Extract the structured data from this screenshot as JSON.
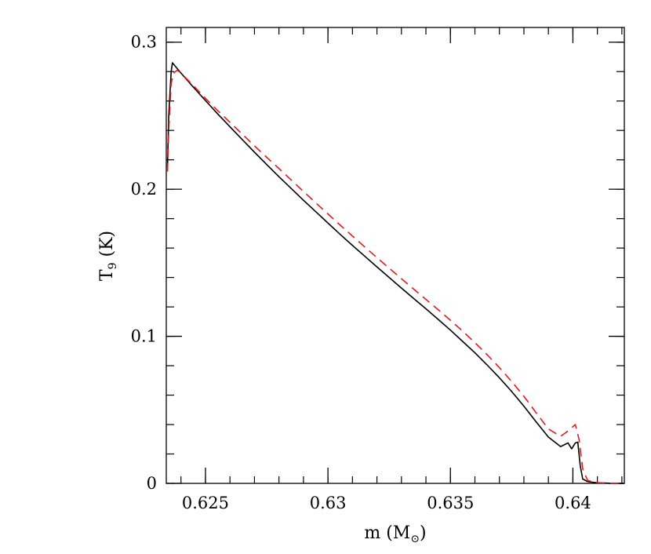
{
  "chart_data": {
    "type": "line",
    "xlabel": "m (M",
    "xlabel_unit_symbol": "⊙",
    "xlabel_close": ")",
    "ylabel": "T",
    "ylabel_sub": "9",
    "ylabel_unit": "(K)",
    "xlim": [
      0.6234,
      0.6421
    ],
    "ylim": [
      0,
      0.31
    ],
    "x_ticks": [
      {
        "value": 0.625,
        "label": "0.625"
      },
      {
        "value": 0.63,
        "label": "0.63"
      },
      {
        "value": 0.635,
        "label": "0.635"
      },
      {
        "value": 0.64,
        "label": "0.64"
      }
    ],
    "y_ticks": [
      {
        "value": 0,
        "label": "0"
      },
      {
        "value": 0.1,
        "label": "0.1"
      },
      {
        "value": 0.2,
        "label": "0.2"
      },
      {
        "value": 0.3,
        "label": "0.3"
      }
    ],
    "x_minor_step": 0.001,
    "y_minor_step": 0.02,
    "grid": false,
    "legend": "none",
    "series": [
      {
        "color": "#000000",
        "style": "solid",
        "points": [
          [
            0.62345,
            0.215
          ],
          [
            0.6235,
            0.25
          ],
          [
            0.6236,
            0.28
          ],
          [
            0.62365,
            0.286
          ],
          [
            0.624,
            0.279
          ],
          [
            0.6245,
            0.2695
          ],
          [
            0.625,
            0.2603
          ],
          [
            0.6255,
            0.2512
          ],
          [
            0.626,
            0.2425
          ],
          [
            0.6265,
            0.2338
          ],
          [
            0.627,
            0.2252
          ],
          [
            0.6275,
            0.2168
          ],
          [
            0.628,
            0.2085
          ],
          [
            0.6285,
            0.2005
          ],
          [
            0.629,
            0.1925
          ],
          [
            0.6295,
            0.1848
          ],
          [
            0.63,
            0.177
          ],
          [
            0.6305,
            0.1693
          ],
          [
            0.631,
            0.1618
          ],
          [
            0.6315,
            0.1545
          ],
          [
            0.632,
            0.1472
          ],
          [
            0.6325,
            0.14
          ],
          [
            0.633,
            0.1328
          ],
          [
            0.6335,
            0.1257
          ],
          [
            0.634,
            0.1187
          ],
          [
            0.6345,
            0.1115
          ],
          [
            0.635,
            0.1042
          ],
          [
            0.6355,
            0.0965
          ],
          [
            0.636,
            0.0888
          ],
          [
            0.6365,
            0.0805
          ],
          [
            0.637,
            0.0718
          ],
          [
            0.6375,
            0.0625
          ],
          [
            0.638,
            0.0525
          ],
          [
            0.6385,
            0.0418
          ],
          [
            0.639,
            0.0315
          ],
          [
            0.6395,
            0.025
          ],
          [
            0.6398,
            0.0275
          ],
          [
            0.63995,
            0.0235
          ],
          [
            0.6401,
            0.0275
          ],
          [
            0.6402,
            0.028
          ],
          [
            0.6403,
            0.012
          ],
          [
            0.6404,
            0.003
          ],
          [
            0.6406,
            0.0012
          ],
          [
            0.641,
            0.0004
          ],
          [
            0.6415,
            0.0001
          ],
          [
            0.6421,
            0.0
          ]
        ]
      },
      {
        "color": "#e8191c",
        "style": "dashed",
        "points": [
          [
            0.62345,
            0.212
          ],
          [
            0.6235,
            0.24
          ],
          [
            0.6236,
            0.272
          ],
          [
            0.6237,
            0.279
          ],
          [
            0.62385,
            0.281
          ],
          [
            0.624,
            0.279
          ],
          [
            0.6245,
            0.2705
          ],
          [
            0.625,
            0.2618
          ],
          [
            0.6255,
            0.2535
          ],
          [
            0.626,
            0.2455
          ],
          [
            0.6265,
            0.2375
          ],
          [
            0.627,
            0.2295
          ],
          [
            0.6275,
            0.2217
          ],
          [
            0.628,
            0.2141
          ],
          [
            0.6285,
            0.2063
          ],
          [
            0.629,
            0.1985
          ],
          [
            0.6295,
            0.1908
          ],
          [
            0.63,
            0.1832
          ],
          [
            0.6305,
            0.1756
          ],
          [
            0.631,
            0.1682
          ],
          [
            0.6315,
            0.1608
          ],
          [
            0.632,
            0.1535
          ],
          [
            0.6325,
            0.1463
          ],
          [
            0.633,
            0.1392
          ],
          [
            0.6335,
            0.1321
          ],
          [
            0.634,
            0.1251
          ],
          [
            0.6345,
            0.1181
          ],
          [
            0.635,
            0.1109
          ],
          [
            0.6355,
            0.1035
          ],
          [
            0.636,
            0.0957
          ],
          [
            0.6365,
            0.0875
          ],
          [
            0.637,
            0.0787
          ],
          [
            0.6375,
            0.0693
          ],
          [
            0.638,
            0.0592
          ],
          [
            0.6385,
            0.048
          ],
          [
            0.639,
            0.037
          ],
          [
            0.6395,
            0.032
          ],
          [
            0.63975,
            0.035
          ],
          [
            0.6401,
            0.04
          ],
          [
            0.64025,
            0.03
          ],
          [
            0.6404,
            0.01
          ],
          [
            0.6406,
            0.002
          ],
          [
            0.641,
            0.0005
          ],
          [
            0.6415,
            0.0001
          ],
          [
            0.6421,
            0.0
          ]
        ]
      }
    ]
  }
}
